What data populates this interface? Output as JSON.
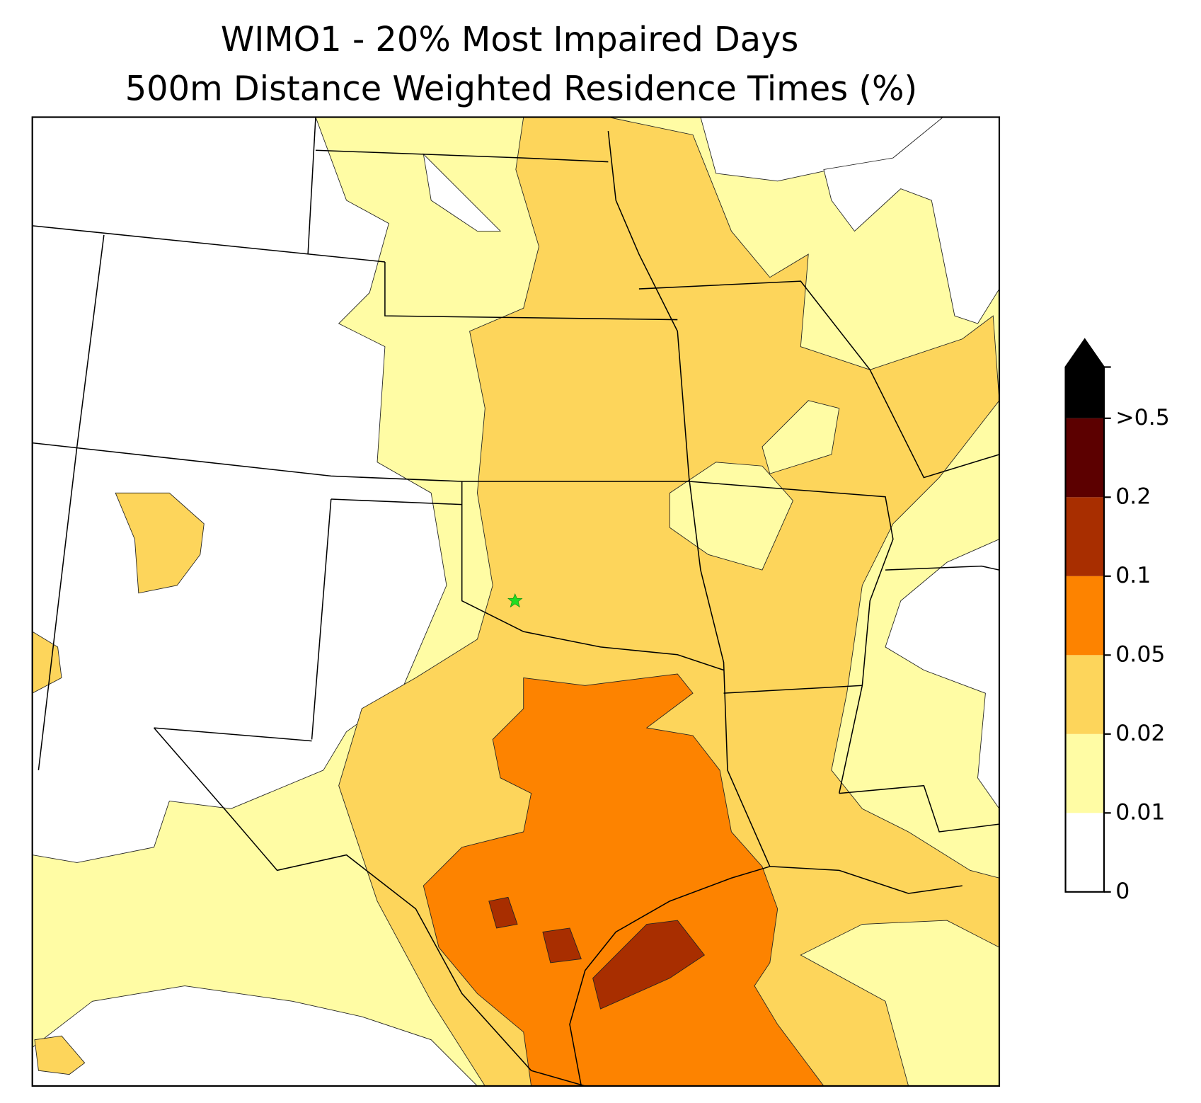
{
  "title": [
    "WIMO1 - 20% Most Impaired Days",
    "500m Distance Weighted Residence Times (%)"
  ],
  "colorbar": {
    "ticks": [
      0,
      0.01,
      0.02,
      0.05,
      0.1,
      0.2,
      {
        "value": 0.5,
        "label": ">0.5"
      }
    ],
    "colors": [
      "#ffffff",
      "#fffca4",
      "#fdd55b",
      "#fd8300",
      "#a82e00",
      "#5c0000",
      "#000000"
    ]
  }
}
